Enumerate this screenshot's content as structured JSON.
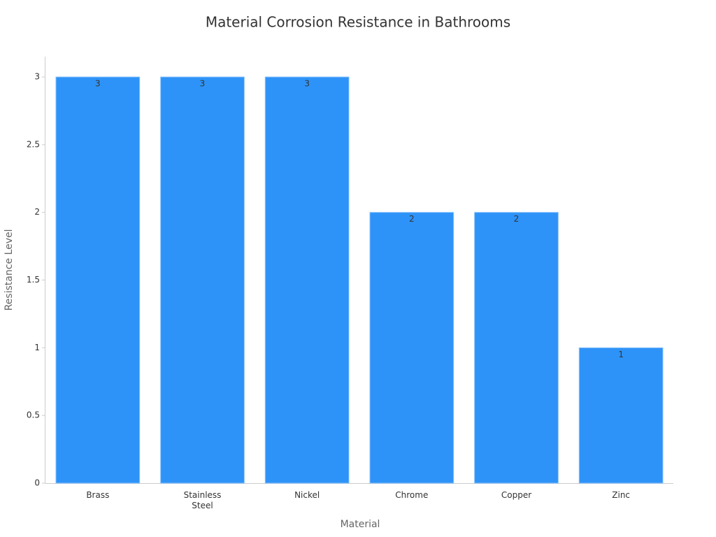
{
  "chart_data": {
    "type": "bar",
    "title": "Material Corrosion Resistance in Bathrooms",
    "x_label": "Material",
    "y_label": "Resistance Level",
    "categories": [
      "Brass",
      "Stainless Steel",
      "Nickel",
      "Chrome",
      "Copper",
      "Zinc"
    ],
    "values": [
      3,
      3,
      3,
      2,
      2,
      1
    ],
    "color": "#2e93f8",
    "ylim": [
      0,
      3.15
    ],
    "yticks": [
      0,
      0.5,
      1,
      1.5,
      2,
      2.5,
      3
    ],
    "grid": false
  }
}
